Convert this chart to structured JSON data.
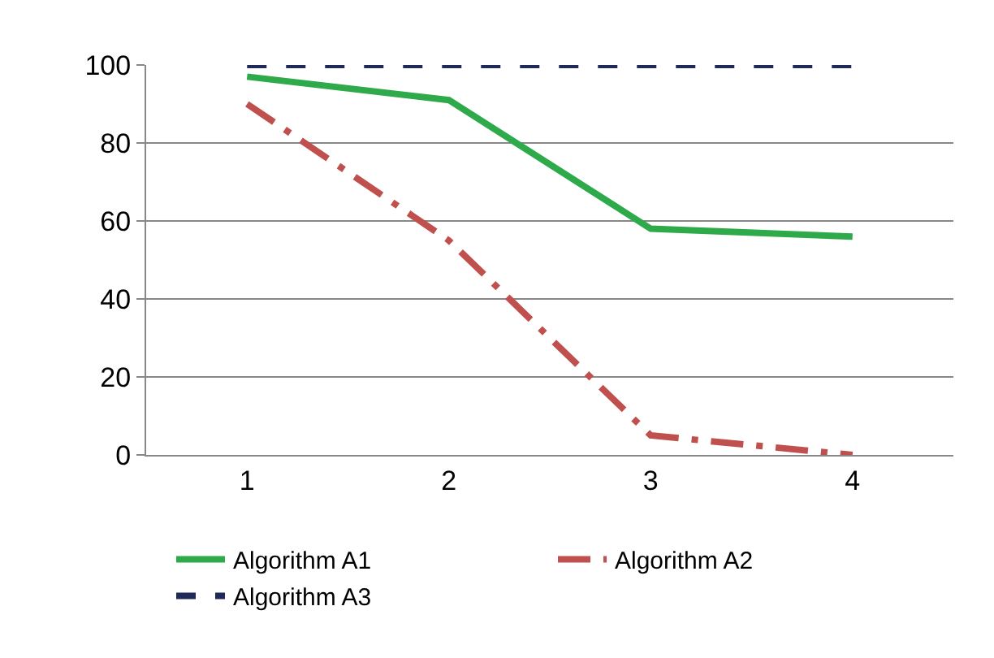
{
  "chart_data": {
    "type": "line",
    "categories": [
      "1",
      "2",
      "3",
      "4"
    ],
    "series": [
      {
        "name": "Algorithm A1",
        "color": "#2eaa4a",
        "values": [
          97,
          91,
          58,
          56
        ],
        "line_style": "solid"
      },
      {
        "name": "Algorithm A2",
        "color": "#c0504d",
        "values": [
          90,
          55,
          5,
          0
        ],
        "line_style": "dashdot"
      },
      {
        "name": "Algorithm A3",
        "color": "#1f2a5a",
        "values": [
          100,
          100,
          100,
          100
        ],
        "line_style": "dashed"
      }
    ],
    "ylim": [
      0,
      100
    ],
    "yticks": [
      0,
      20,
      40,
      60,
      80,
      100
    ],
    "grid": "y",
    "legend": "bottom",
    "marker": "none"
  }
}
